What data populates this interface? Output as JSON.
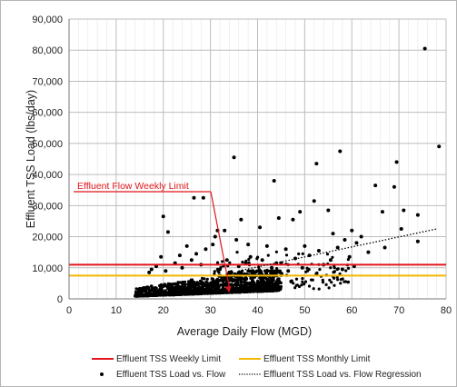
{
  "chart_data": {
    "type": "scatter",
    "xlabel": "Average Daily Flow (MGD)",
    "ylabel": "Effluent TSS Load (lbs/day)",
    "xlim": [
      0,
      80
    ],
    "ylim": [
      0,
      90000
    ],
    "x_ticks": [
      0,
      10,
      20,
      30,
      40,
      50,
      60,
      70,
      80
    ],
    "x_tick_labels": [
      "0",
      "10",
      "20",
      "30",
      "40",
      "50",
      "60",
      "70",
      "80"
    ],
    "y_ticks": [
      0,
      10000,
      20000,
      30000,
      40000,
      50000,
      60000,
      70000,
      80000,
      90000
    ],
    "y_tick_labels": [
      "0",
      "10,000",
      "20,000",
      "30,000",
      "40,000",
      "50,000",
      "60,000",
      "70,000",
      "80,000",
      "90,000"
    ],
    "grid": "on",
    "legend_placement": "bottom",
    "annotation": {
      "text": "Effluent Flow Weekly Limit",
      "color": "#e0141b",
      "arrow_to": [
        34,
        2000
      ]
    },
    "series": [
      {
        "name": "Effluent TSS Weekly Limit",
        "kind": "hline",
        "y": 11000,
        "color": "#e0141b"
      },
      {
        "name": "Effluent TSS Monthly Limit",
        "kind": "hline",
        "y": 7500,
        "color": "#f2b800"
      },
      {
        "name": "Effluent TSS Load vs. Flow",
        "kind": "scatter",
        "color": "#000000",
        "points": [
          [
            20,
            26500
          ],
          [
            21,
            21500
          ],
          [
            26.5,
            32500
          ],
          [
            28.5,
            32500
          ],
          [
            31.5,
            22000
          ],
          [
            35,
            45500
          ],
          [
            43.5,
            38000
          ],
          [
            52.5,
            43500
          ],
          [
            57.5,
            47500
          ],
          [
            75.5,
            80500
          ],
          [
            78.5,
            49000
          ],
          [
            69.5,
            44000
          ],
          [
            65,
            36500
          ],
          [
            69,
            36000
          ],
          [
            71,
            28500
          ],
          [
            66.5,
            28000
          ],
          [
            70.5,
            22500
          ],
          [
            62,
            20000
          ],
          [
            74,
            27000
          ],
          [
            74,
            18500
          ],
          [
            49,
            28000
          ],
          [
            55,
            28500
          ],
          [
            56,
            21000
          ],
          [
            58.5,
            19000
          ],
          [
            60,
            22000
          ],
          [
            61,
            18000
          ],
          [
            52,
            31500
          ],
          [
            44.5,
            26000
          ],
          [
            47.5,
            25500
          ],
          [
            40.5,
            23000
          ],
          [
            36.5,
            25500
          ],
          [
            33,
            22000
          ],
          [
            35.5,
            19000
          ],
          [
            38,
            17500
          ],
          [
            42,
            17000
          ],
          [
            46,
            16000
          ],
          [
            50,
            17000
          ],
          [
            53,
            15500
          ],
          [
            29,
            16000
          ],
          [
            30.5,
            17500
          ],
          [
            27,
            14500
          ],
          [
            25,
            17000
          ],
          [
            23.5,
            14000
          ],
          [
            31,
            20000
          ],
          [
            38.5,
            13500
          ],
          [
            41,
            12500
          ],
          [
            44,
            11500
          ],
          [
            48,
            13000
          ],
          [
            51,
            14000
          ],
          [
            55.5,
            12500
          ],
          [
            57,
            16500
          ],
          [
            59.5,
            13500
          ],
          [
            63.5,
            15000
          ],
          [
            67,
            16500
          ],
          [
            19.5,
            13500
          ],
          [
            18.5,
            10500
          ],
          [
            17.5,
            9500
          ],
          [
            22.5,
            11500
          ],
          [
            26,
            12500
          ],
          [
            28,
            11000
          ],
          [
            32,
            9500
          ],
          [
            34,
            8500
          ],
          [
            36,
            10500
          ],
          [
            39,
            9000
          ],
          [
            43,
            10000
          ],
          [
            46.5,
            9000
          ],
          [
            54,
            11000
          ],
          [
            60.5,
            10500
          ],
          [
            17,
            8500
          ],
          [
            20.5,
            9000
          ],
          [
            24,
            10000
          ],
          [
            33.5,
            12500
          ],
          [
            37.5,
            11500
          ],
          [
            45,
            11500
          ],
          [
            49.5,
            10000
          ],
          [
            52.5,
            8000
          ],
          [
            58,
            9500
          ]
        ]
      },
      {
        "name": "Effluent TSS Load vs. Flow Regression",
        "kind": "line",
        "style": "dotted",
        "color": "#000000",
        "points": [
          [
            36,
            9000
          ],
          [
            78,
            22500
          ]
        ]
      }
    ],
    "dense_cloud": {
      "series": "Effluent TSS Load vs. Flow",
      "x_range": [
        14,
        45
      ],
      "y_range": [
        500,
        9000
      ],
      "count": 1400
    }
  }
}
